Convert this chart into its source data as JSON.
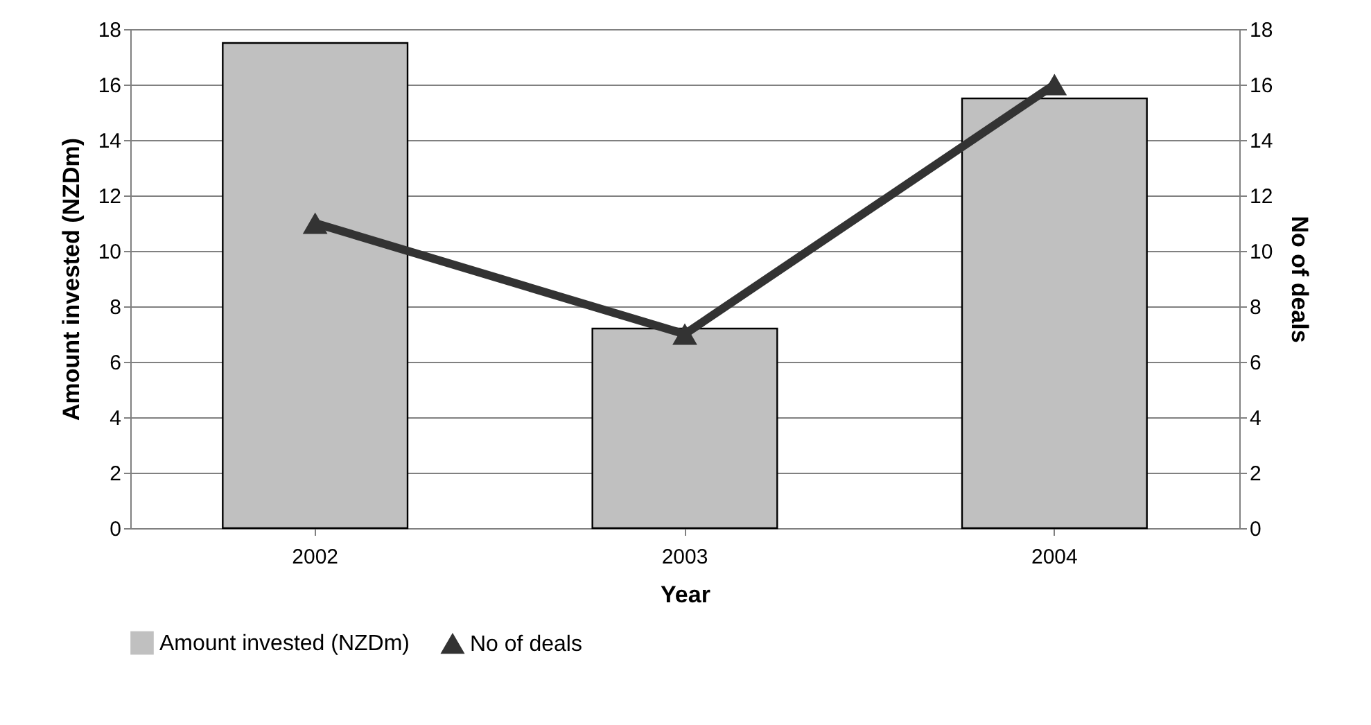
{
  "chart_data": {
    "type": "bar",
    "xlabel": "Year",
    "ylabel": "Amount invested (NZDm)",
    "y2label": "No of deals",
    "categories": [
      "2002",
      "2003",
      "2004"
    ],
    "series": [
      {
        "name": "Amount invested (NZDm)",
        "color": "#c0c0c0",
        "values": [
          17.5,
          7.2,
          15.5
        ]
      },
      {
        "name": "No of deals",
        "type": "line",
        "axis": "y2",
        "color": "#333333",
        "values": [
          11,
          7,
          16
        ]
      }
    ],
    "ylim": [
      0,
      18
    ],
    "yticks": [
      0,
      2,
      4,
      6,
      8,
      10,
      12,
      14,
      16,
      18
    ],
    "y2lim": [
      0,
      18
    ],
    "y2ticks": [
      0,
      2,
      4,
      6,
      8,
      10,
      12,
      14,
      16,
      18
    ],
    "grid": "y",
    "legend": "bottom",
    "marker": "triangle"
  }
}
